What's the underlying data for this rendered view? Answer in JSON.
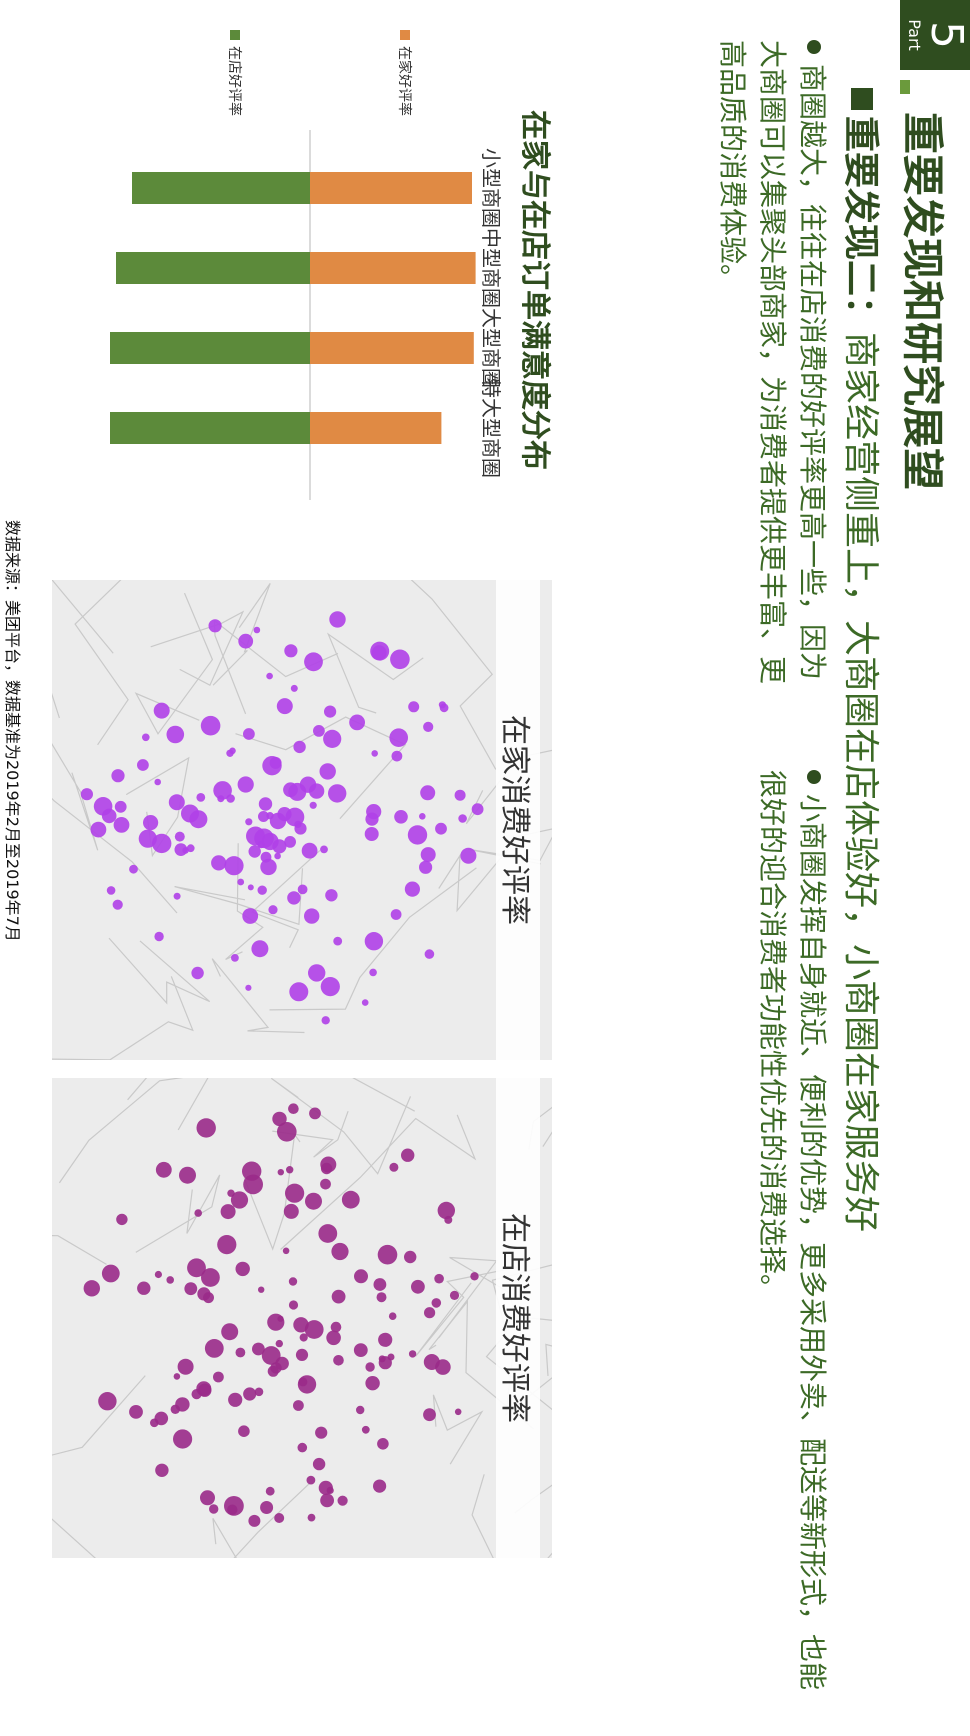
{
  "header": {
    "part_number": "5",
    "part_label": "Part",
    "title": "重要发现和研究展望"
  },
  "finding": {
    "label": "重要发现二：",
    "text": "商家经营侧重上，大商圈在店体验好，小商圈在家服务好"
  },
  "bullets": [
    "商圈越大，往往在店消费的好评率更高一些，因为大商圈可以集聚头部商家，为消费者提供更丰富、更高品质的消费体验。",
    "小商圈发挥自身就近、便利的优势，更多采用外卖、配送等新形式，也能很好的迎合消费者功能性优先的消费选择。"
  ],
  "chart_data": {
    "type": "bar",
    "title": "在家与在店订单满意度分布",
    "categories": [
      "小型商圈",
      "中型商圈",
      "大型商圈",
      "特大型商圈"
    ],
    "series": [
      {
        "name": "在家好评率",
        "color": "#e08a44",
        "values": [
          0.9,
          0.92,
          0.91,
          0.73
        ]
      },
      {
        "name": "在店好评率",
        "color": "#5c8a3a",
        "values": [
          0.89,
          0.97,
          1.0,
          1.0
        ]
      }
    ],
    "legend_position": "bottom"
  },
  "maps": [
    {
      "title": "在家消费好评率",
      "dot_color": "#b040e8"
    },
    {
      "title": "在店消费好评率",
      "dot_color": "#9a2a8a"
    }
  ],
  "source": "数据来源：美团平台，数据基准为2019年2月至2019年7月"
}
